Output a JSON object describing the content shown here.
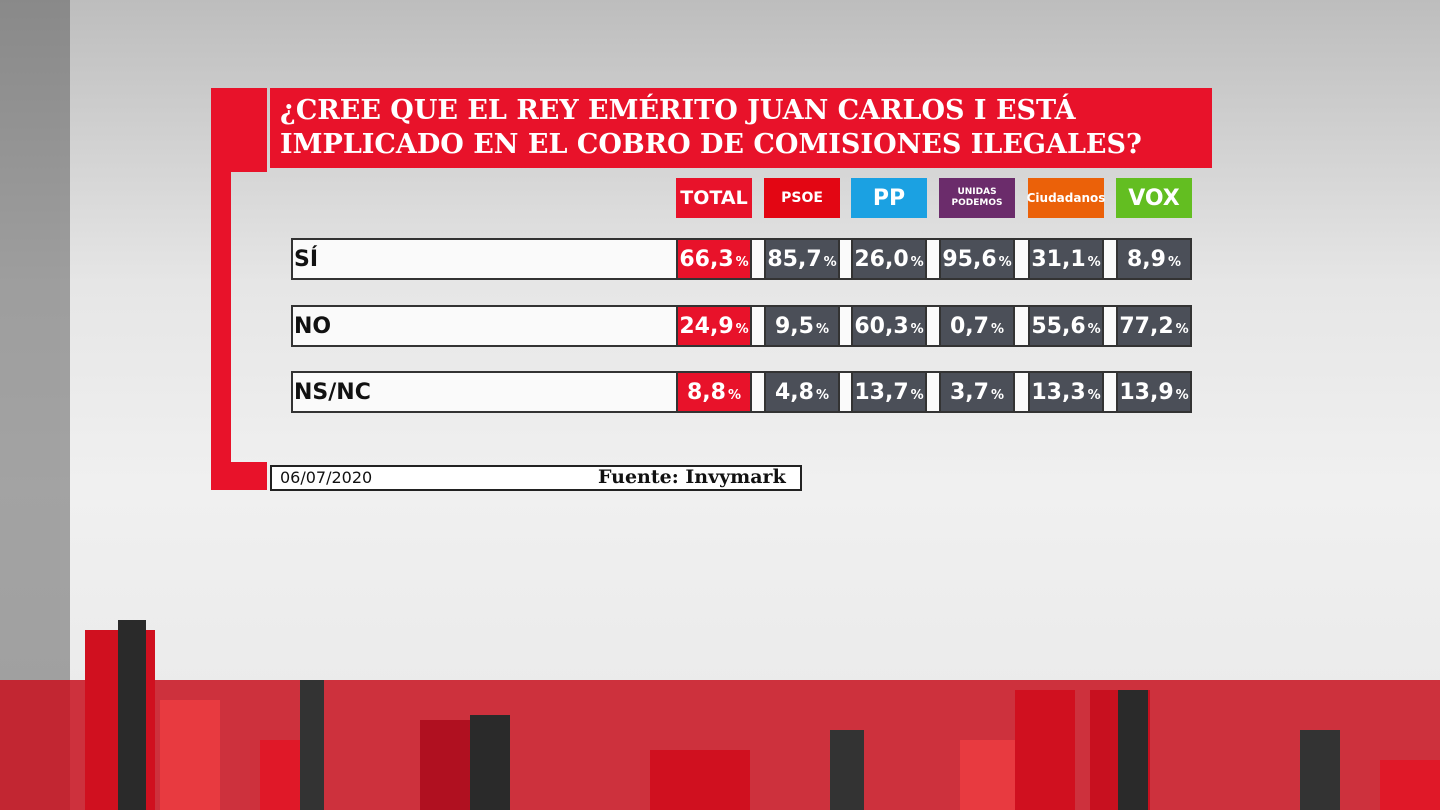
{
  "title": "¿CREE QUE EL REY EMÉRITO JUAN CARLOS I ESTÁ IMPLICADO EN EL COBRO DE COMISIONES ILEGALES?",
  "table": {
    "columns": [
      "TOTAL",
      "PSOE",
      "PP",
      "UNIDAS PODEMOS",
      "Ciudadanos",
      "VOX"
    ],
    "rows": [
      {
        "label": "SÍ",
        "cells": [
          "66,3%",
          "85,7%",
          "26,0%",
          "95,6%",
          "31,1%",
          "8,9%"
        ]
      },
      {
        "label": "NO",
        "cells": [
          "24,9%",
          "9,5%",
          "60,3%",
          "0,7%",
          "55,6%",
          "77,2%"
        ]
      },
      {
        "label": "NS/NC",
        "cells": [
          "8,8%",
          "4,8%",
          "13,7%",
          "3,7%",
          "13,3%",
          "13,9%"
        ]
      }
    ]
  },
  "footer": {
    "date": "06/07/2020",
    "source": "Fuente: Invymark"
  }
}
